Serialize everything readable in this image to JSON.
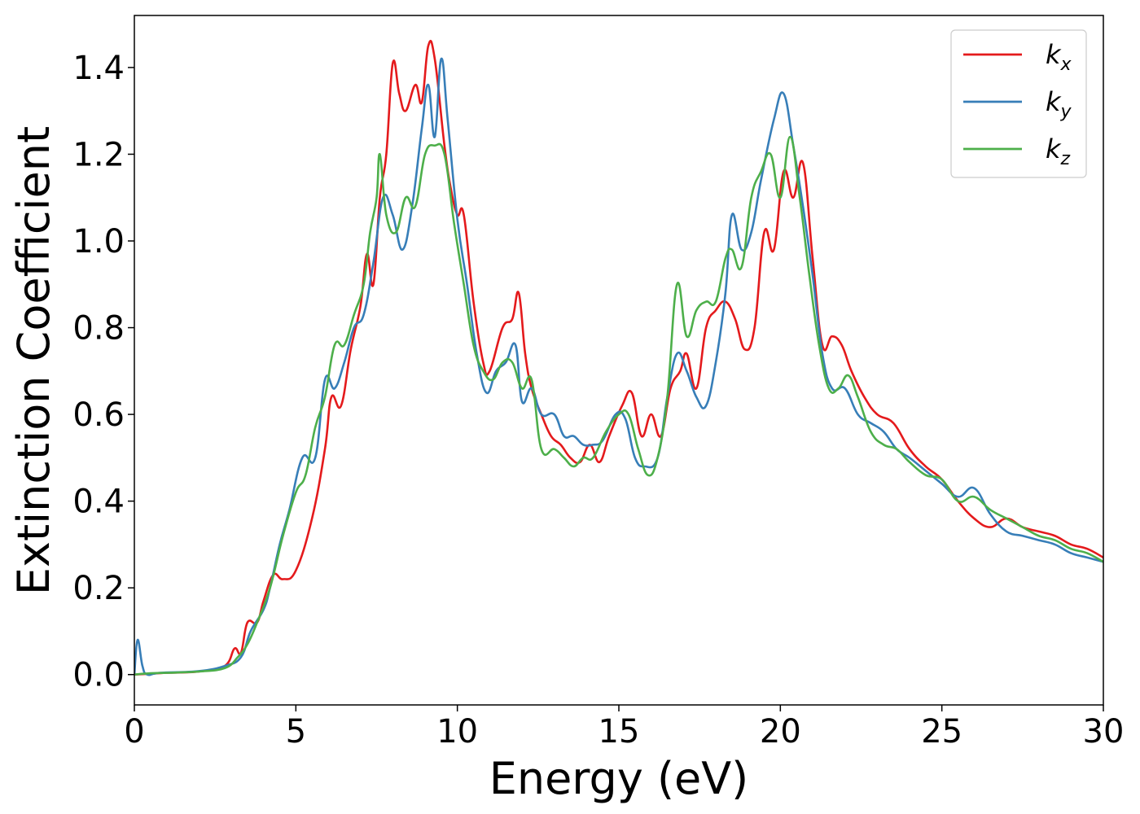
{
  "chart_data": {
    "type": "line",
    "title": "",
    "xlabel": "Energy (eV)",
    "ylabel": "Extinction Coefficient",
    "xlim": [
      0,
      30
    ],
    "ylim": [
      -0.07,
      1.52
    ],
    "xticks": [
      0,
      5,
      10,
      15,
      20,
      25,
      30
    ],
    "xtick_labels": [
      "0",
      "5",
      "10",
      "15",
      "20",
      "25",
      "30"
    ],
    "yticks": [
      0.0,
      0.2,
      0.4,
      0.6,
      0.8,
      1.0,
      1.2,
      1.4
    ],
    "ytick_labels": [
      "0.0",
      "0.2",
      "0.4",
      "0.6",
      "0.8",
      "1.0",
      "1.2",
      "1.4"
    ],
    "grid": false,
    "legend_position": "top-right",
    "series": [
      {
        "name": "k_x",
        "label_base": "k",
        "label_sub": "x",
        "color": "#e41a1c",
        "points": [
          [
            0,
            0
          ],
          [
            0.5,
            0.002
          ],
          [
            1,
            0.004
          ],
          [
            2,
            0.007
          ],
          [
            2.8,
            0.02
          ],
          [
            3.1,
            0.06
          ],
          [
            3.3,
            0.05
          ],
          [
            3.5,
            0.12
          ],
          [
            3.8,
            0.12
          ],
          [
            4,
            0.17
          ],
          [
            4.3,
            0.23
          ],
          [
            4.6,
            0.22
          ],
          [
            5,
            0.24
          ],
          [
            5.5,
            0.36
          ],
          [
            5.9,
            0.52
          ],
          [
            6.1,
            0.64
          ],
          [
            6.4,
            0.62
          ],
          [
            6.7,
            0.75
          ],
          [
            7,
            0.85
          ],
          [
            7.2,
            0.97
          ],
          [
            7.4,
            0.9
          ],
          [
            7.6,
            1.1
          ],
          [
            7.8,
            1.2
          ],
          [
            8,
            1.41
          ],
          [
            8.2,
            1.34
          ],
          [
            8.4,
            1.3
          ],
          [
            8.7,
            1.36
          ],
          [
            8.9,
            1.32
          ],
          [
            9.1,
            1.45
          ],
          [
            9.3,
            1.42
          ],
          [
            9.6,
            1.22
          ],
          [
            9.8,
            1.12
          ],
          [
            10,
            1.06
          ],
          [
            10.2,
            1.06
          ],
          [
            10.5,
            0.86
          ],
          [
            10.8,
            0.72
          ],
          [
            11,
            0.7
          ],
          [
            11.4,
            0.8
          ],
          [
            11.7,
            0.82
          ],
          [
            11.9,
            0.88
          ],
          [
            12.1,
            0.74
          ],
          [
            12.3,
            0.66
          ],
          [
            12.6,
            0.6
          ],
          [
            12.9,
            0.55
          ],
          [
            13.2,
            0.53
          ],
          [
            13.5,
            0.5
          ],
          [
            13.8,
            0.49
          ],
          [
            14.1,
            0.53
          ],
          [
            14.4,
            0.49
          ],
          [
            14.7,
            0.55
          ],
          [
            15.1,
            0.62
          ],
          [
            15.4,
            0.65
          ],
          [
            15.7,
            0.55
          ],
          [
            16,
            0.6
          ],
          [
            16.3,
            0.55
          ],
          [
            16.6,
            0.66
          ],
          [
            16.9,
            0.7
          ],
          [
            17.1,
            0.74
          ],
          [
            17.4,
            0.66
          ],
          [
            17.7,
            0.8
          ],
          [
            18,
            0.84
          ],
          [
            18.3,
            0.86
          ],
          [
            18.6,
            0.82
          ],
          [
            18.9,
            0.75
          ],
          [
            19.2,
            0.8
          ],
          [
            19.5,
            1.02
          ],
          [
            19.8,
            0.98
          ],
          [
            20.1,
            1.16
          ],
          [
            20.4,
            1.1
          ],
          [
            20.7,
            1.18
          ],
          [
            21,
            0.96
          ],
          [
            21.3,
            0.76
          ],
          [
            21.6,
            0.78
          ],
          [
            21.9,
            0.76
          ],
          [
            22.2,
            0.7
          ],
          [
            22.6,
            0.64
          ],
          [
            23,
            0.6
          ],
          [
            23.5,
            0.58
          ],
          [
            24,
            0.52
          ],
          [
            24.5,
            0.48
          ],
          [
            25,
            0.45
          ],
          [
            25.5,
            0.4
          ],
          [
            26,
            0.36
          ],
          [
            26.5,
            0.34
          ],
          [
            27,
            0.36
          ],
          [
            27.5,
            0.34
          ],
          [
            28,
            0.33
          ],
          [
            28.5,
            0.32
          ],
          [
            29,
            0.3
          ],
          [
            29.5,
            0.29
          ],
          [
            30,
            0.27
          ]
        ]
      },
      {
        "name": "k_y",
        "label_base": "k",
        "label_sub": "y",
        "color": "#377eb8",
        "points": [
          [
            0,
            0
          ],
          [
            0.1,
            0.08
          ],
          [
            0.25,
            0.02
          ],
          [
            0.4,
            0
          ],
          [
            0.8,
            0.004
          ],
          [
            2,
            0.008
          ],
          [
            2.8,
            0.02
          ],
          [
            3.3,
            0.04
          ],
          [
            3.6,
            0.1
          ],
          [
            4,
            0.15
          ],
          [
            4.2,
            0.2
          ],
          [
            4.5,
            0.3
          ],
          [
            4.8,
            0.38
          ],
          [
            5.2,
            0.5
          ],
          [
            5.6,
            0.5
          ],
          [
            5.9,
            0.68
          ],
          [
            6.2,
            0.66
          ],
          [
            6.5,
            0.72
          ],
          [
            6.8,
            0.8
          ],
          [
            7.1,
            0.83
          ],
          [
            7.4,
            0.95
          ],
          [
            7.7,
            1.1
          ],
          [
            8,
            1.06
          ],
          [
            8.3,
            0.98
          ],
          [
            8.6,
            1.08
          ],
          [
            8.9,
            1.26
          ],
          [
            9.1,
            1.36
          ],
          [
            9.3,
            1.24
          ],
          [
            9.5,
            1.42
          ],
          [
            9.7,
            1.28
          ],
          [
            10,
            1.05
          ],
          [
            10.3,
            0.9
          ],
          [
            10.6,
            0.74
          ],
          [
            10.9,
            0.65
          ],
          [
            11.2,
            0.7
          ],
          [
            11.5,
            0.72
          ],
          [
            11.8,
            0.76
          ],
          [
            12,
            0.63
          ],
          [
            12.3,
            0.66
          ],
          [
            12.6,
            0.6
          ],
          [
            13,
            0.6
          ],
          [
            13.3,
            0.55
          ],
          [
            13.6,
            0.55
          ],
          [
            13.9,
            0.53
          ],
          [
            14.2,
            0.53
          ],
          [
            14.5,
            0.54
          ],
          [
            14.9,
            0.6
          ],
          [
            15.2,
            0.59
          ],
          [
            15.5,
            0.5
          ],
          [
            15.8,
            0.48
          ],
          [
            16.2,
            0.5
          ],
          [
            16.5,
            0.64
          ],
          [
            16.8,
            0.74
          ],
          [
            17.1,
            0.7
          ],
          [
            17.4,
            0.64
          ],
          [
            17.7,
            0.62
          ],
          [
            18,
            0.72
          ],
          [
            18.3,
            0.88
          ],
          [
            18.5,
            1.06
          ],
          [
            18.8,
            0.98
          ],
          [
            19.1,
            1.02
          ],
          [
            19.4,
            1.14
          ],
          [
            19.8,
            1.28
          ],
          [
            20.1,
            1.34
          ],
          [
            20.4,
            1.22
          ],
          [
            20.7,
            1.08
          ],
          [
            21,
            0.92
          ],
          [
            21.3,
            0.74
          ],
          [
            21.6,
            0.66
          ],
          [
            22,
            0.66
          ],
          [
            22.4,
            0.6
          ],
          [
            22.8,
            0.58
          ],
          [
            23.2,
            0.56
          ],
          [
            23.6,
            0.52
          ],
          [
            24,
            0.5
          ],
          [
            24.5,
            0.47
          ],
          [
            25,
            0.44
          ],
          [
            25.5,
            0.41
          ],
          [
            26,
            0.43
          ],
          [
            26.5,
            0.37
          ],
          [
            27,
            0.33
          ],
          [
            27.5,
            0.32
          ],
          [
            28,
            0.31
          ],
          [
            28.5,
            0.3
          ],
          [
            29,
            0.28
          ],
          [
            29.5,
            0.27
          ],
          [
            30,
            0.26
          ]
        ]
      },
      {
        "name": "k_z",
        "label_base": "k",
        "label_sub": "z",
        "color": "#4daf4a",
        "points": [
          [
            0,
            0
          ],
          [
            0.5,
            0.003
          ],
          [
            1,
            0.004
          ],
          [
            2,
            0.007
          ],
          [
            2.8,
            0.015
          ],
          [
            3.2,
            0.04
          ],
          [
            3.5,
            0.07
          ],
          [
            3.8,
            0.12
          ],
          [
            4.2,
            0.2
          ],
          [
            4.6,
            0.32
          ],
          [
            5,
            0.42
          ],
          [
            5.3,
            0.46
          ],
          [
            5.6,
            0.57
          ],
          [
            5.9,
            0.64
          ],
          [
            6.2,
            0.76
          ],
          [
            6.5,
            0.76
          ],
          [
            6.8,
            0.83
          ],
          [
            7.1,
            0.9
          ],
          [
            7.3,
            1.02
          ],
          [
            7.5,
            1.1
          ],
          [
            7.6,
            1.2
          ],
          [
            7.8,
            1.06
          ],
          [
            8.1,
            1.02
          ],
          [
            8.4,
            1.1
          ],
          [
            8.7,
            1.08
          ],
          [
            9,
            1.2
          ],
          [
            9.3,
            1.22
          ],
          [
            9.6,
            1.2
          ],
          [
            9.9,
            1.04
          ],
          [
            10.2,
            0.9
          ],
          [
            10.5,
            0.76
          ],
          [
            10.8,
            0.7
          ],
          [
            11.1,
            0.68
          ],
          [
            11.4,
            0.72
          ],
          [
            11.7,
            0.72
          ],
          [
            12,
            0.66
          ],
          [
            12.3,
            0.68
          ],
          [
            12.6,
            0.52
          ],
          [
            13,
            0.52
          ],
          [
            13.3,
            0.5
          ],
          [
            13.6,
            0.48
          ],
          [
            13.9,
            0.5
          ],
          [
            14.2,
            0.5
          ],
          [
            14.6,
            0.56
          ],
          [
            15,
            0.6
          ],
          [
            15.3,
            0.6
          ],
          [
            15.6,
            0.52
          ],
          [
            15.9,
            0.46
          ],
          [
            16.2,
            0.5
          ],
          [
            16.5,
            0.64
          ],
          [
            16.8,
            0.9
          ],
          [
            17.1,
            0.78
          ],
          [
            17.4,
            0.84
          ],
          [
            17.7,
            0.86
          ],
          [
            18,
            0.86
          ],
          [
            18.3,
            0.96
          ],
          [
            18.5,
            0.98
          ],
          [
            18.8,
            0.94
          ],
          [
            19.1,
            1.1
          ],
          [
            19.4,
            1.16
          ],
          [
            19.7,
            1.2
          ],
          [
            20,
            1.1
          ],
          [
            20.3,
            1.24
          ],
          [
            20.6,
            1.1
          ],
          [
            20.9,
            0.92
          ],
          [
            21.2,
            0.76
          ],
          [
            21.5,
            0.66
          ],
          [
            21.8,
            0.66
          ],
          [
            22.1,
            0.69
          ],
          [
            22.4,
            0.64
          ],
          [
            22.8,
            0.56
          ],
          [
            23.2,
            0.53
          ],
          [
            23.6,
            0.52
          ],
          [
            24,
            0.49
          ],
          [
            24.5,
            0.46
          ],
          [
            25,
            0.45
          ],
          [
            25.5,
            0.4
          ],
          [
            26,
            0.41
          ],
          [
            26.5,
            0.38
          ],
          [
            27,
            0.36
          ],
          [
            27.5,
            0.34
          ],
          [
            28,
            0.32
          ],
          [
            28.5,
            0.31
          ],
          [
            29,
            0.29
          ],
          [
            29.5,
            0.28
          ],
          [
            30,
            0.26
          ]
        ]
      }
    ]
  }
}
